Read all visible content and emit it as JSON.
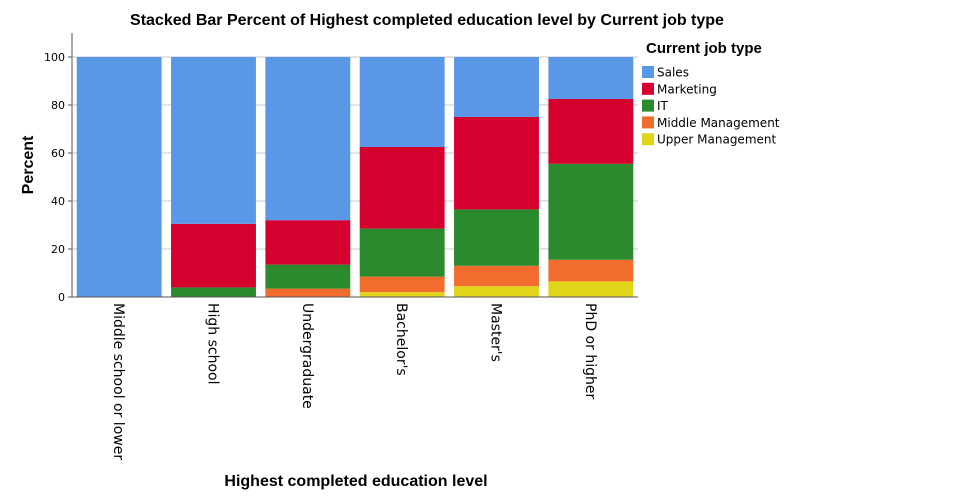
{
  "chart_data": {
    "type": "bar",
    "stacked": true,
    "title": "Stacked Bar Percent of Highest completed education level by Current job type",
    "xlabel": "Highest completed education level",
    "ylabel": "Percent",
    "ylim": [
      0,
      110
    ],
    "yticks": [
      0,
      20,
      40,
      60,
      80,
      100
    ],
    "grid": true,
    "legend": {
      "title": "Current job type",
      "position": "right"
    },
    "categories": [
      "Middle school or lower",
      "High school",
      "Undergraduate",
      "Bachelor's",
      "Master's",
      "PhD or higher"
    ],
    "series": [
      {
        "name": "Upper Management",
        "color": "#e1d51a",
        "values": [
          0,
          0,
          0,
          2,
          4.5,
          6.5
        ]
      },
      {
        "name": "Middle Management",
        "color": "#f26c2d",
        "values": [
          0,
          0,
          3.5,
          6.5,
          8.5,
          9
        ]
      },
      {
        "name": "IT",
        "color": "#2a8a2d",
        "values": [
          0,
          4,
          10,
          20,
          23.5,
          40
        ]
      },
      {
        "name": "Marketing",
        "color": "#d6002e",
        "values": [
          0,
          26.5,
          18.5,
          34,
          38.5,
          27
        ]
      },
      {
        "name": "Sales",
        "color": "#5a97e6",
        "values": [
          100,
          69.5,
          68,
          37.5,
          25,
          17.5
        ]
      }
    ],
    "legend_order": [
      "Sales",
      "Marketing",
      "IT",
      "Middle Management",
      "Upper Management"
    ]
  }
}
